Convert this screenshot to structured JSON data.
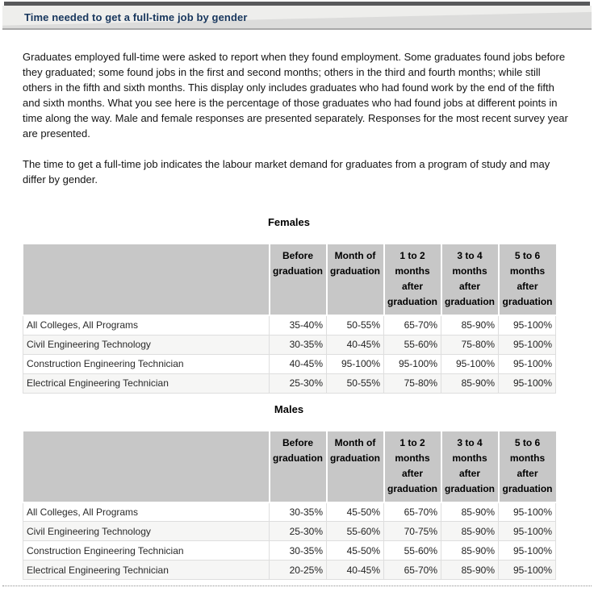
{
  "header": {
    "title": "Time needed to get a full-time job by gender"
  },
  "paragraphs": [
    "Graduates employed full-time were asked to report when they found employment. Some graduates found jobs before they graduated; some found jobs in the first and second months; others in the third and fourth months; while still others in the fifth and sixth months. This display only includes graduates who had found work by the end of the fifth and sixth months. What you see here is the percentage of those graduates who had found jobs at different points in time along the way. Male and female responses are presented separately. Responses for the most recent survey year are presented.",
    "The time to get a full-time job indicates the labour market demand for graduates from a program of study and may differ by gender."
  ],
  "tables": [
    {
      "heading": "Females",
      "columns": [
        "Before graduation",
        "Month of graduation",
        "1 to 2 months after graduation",
        "3 to 4 months after graduation",
        "5 to 6 months after graduation"
      ],
      "rows": [
        {
          "label": "All Colleges, All Programs",
          "values": [
            "35-40%",
            "50-55%",
            "65-70%",
            "85-90%",
            "95-100%"
          ]
        },
        {
          "label": "Civil Engineering Technology",
          "values": [
            "30-35%",
            "40-45%",
            "55-60%",
            "75-80%",
            "95-100%"
          ]
        },
        {
          "label": "Construction Engineering Technician",
          "values": [
            "40-45%",
            "95-100%",
            "95-100%",
            "95-100%",
            "95-100%"
          ]
        },
        {
          "label": "Electrical Engineering Technician",
          "values": [
            "25-30%",
            "50-55%",
            "75-80%",
            "85-90%",
            "95-100%"
          ]
        }
      ]
    },
    {
      "heading": "Males",
      "columns": [
        "Before graduation",
        "Month of graduation",
        "1 to 2 months after graduation",
        "3 to 4 months after graduation",
        "5 to 6 months after graduation"
      ],
      "rows": [
        {
          "label": "All Colleges, All Programs",
          "values": [
            "30-35%",
            "45-50%",
            "65-70%",
            "85-90%",
            "95-100%"
          ]
        },
        {
          "label": "Civil Engineering Technology",
          "values": [
            "25-30%",
            "55-60%",
            "70-75%",
            "85-90%",
            "95-100%"
          ]
        },
        {
          "label": "Construction Engineering Technician",
          "values": [
            "30-35%",
            "45-50%",
            "55-60%",
            "85-90%",
            "95-100%"
          ]
        },
        {
          "label": "Electrical Engineering Technician",
          "values": [
            "20-25%",
            "40-45%",
            "65-70%",
            "85-90%",
            "95-100%"
          ]
        }
      ]
    }
  ],
  "colors": {
    "accent_bar": "#58595b",
    "title_text": "#17365d",
    "title_band_bg": "#dcdcdb",
    "title_band_highlight": "#eeeeec",
    "table_header_bg": "#c7c7c7",
    "row_alt_bg": "#f6f6f5",
    "dotted_rule": "#8f8f8f"
  }
}
